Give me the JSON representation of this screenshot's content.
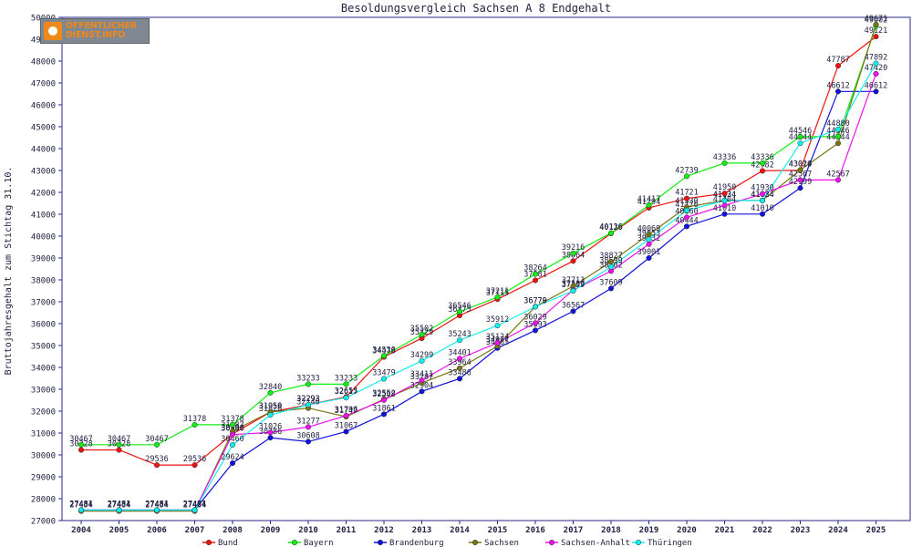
{
  "chart_data": {
    "type": "line",
    "title": "Besoldungsvergleich Sachsen A 8 Endgehalt",
    "xlabel": "",
    "ylabel": "Bruttojahresgehalt zum Stichtag 31.10.",
    "categories": [
      "2004",
      "2005",
      "2006",
      "2007",
      "2008",
      "2009",
      "2010",
      "2011",
      "2012",
      "2013",
      "2014",
      "2015",
      "2016",
      "2017",
      "2018",
      "2019",
      "2020",
      "2021",
      "2022",
      "2023",
      "2024",
      "2025"
    ],
    "ylim": [
      27000,
      50000
    ],
    "yticks": [
      27000,
      28000,
      29000,
      30000,
      31000,
      32000,
      33000,
      34000,
      35000,
      36000,
      37000,
      38000,
      39000,
      40000,
      41000,
      42000,
      43000,
      44000,
      45000,
      46000,
      47000,
      48000,
      49000,
      50000
    ],
    "grid": false,
    "legend_position": "bottom",
    "series": [
      {
        "name": "Bund",
        "color": "#ee1111",
        "values": [
          30228,
          30228,
          29536,
          29536,
          30960,
          31956,
          32293,
          32655,
          34478,
          35329,
          36375,
          37115,
          37981,
          38864,
          40126,
          41294,
          41721,
          41950,
          42982,
          43014,
          47787,
          49121
        ]
      },
      {
        "name": "Bayern",
        "color": "#11ee11",
        "values": [
          30467,
          30467,
          30467,
          31378,
          31378,
          32840,
          33233,
          33233,
          34530,
          35502,
          36546,
          37211,
          38264,
          39216,
          40136,
          41417,
          42739,
          43336,
          43336,
          44546,
          44546,
          49602
        ]
      },
      {
        "name": "Brandenburg",
        "color": "#1111dd",
        "values": [
          27484,
          27484,
          27484,
          27484,
          29624,
          30786,
          30608,
          31067,
          31861,
          32904,
          33486,
          34885,
          35693,
          36567,
          37609,
          39001,
          40444,
          41010,
          41010,
          42199,
          46612,
          46612
        ]
      },
      {
        "name": "Sachsen",
        "color": "#777711",
        "values": [
          27434,
          27434,
          27434,
          27434,
          31087,
          31959,
          32140,
          31747,
          32552,
          33287,
          33964,
          34977,
          36779,
          37713,
          38827,
          40069,
          41330,
          41634,
          41634,
          43020,
          44244,
          49671
        ]
      },
      {
        "name": "Sachsen-Anhalt",
        "color": "#ee11ee",
        "values": [
          27481,
          27481,
          27481,
          27481,
          30930,
          31026,
          31277,
          31796,
          32508,
          33411,
          34401,
          35124,
          36029,
          37539,
          38402,
          39632,
          40860,
          41404,
          41930,
          42567,
          42567,
          47420
        ]
      },
      {
        "name": "Thüringen",
        "color": "#11eeee",
        "values": [
          27481,
          27481,
          27481,
          27481,
          30460,
          31826,
          32293,
          32617,
          33479,
          34299,
          35243,
          35912,
          36770,
          37499,
          38599,
          39853,
          41176,
          41624,
          41624,
          44244,
          44880,
          47892
        ]
      }
    ]
  },
  "logo": {
    "line1": "ÖFFENTLICHER",
    "line2": "DIENST.INFO"
  }
}
